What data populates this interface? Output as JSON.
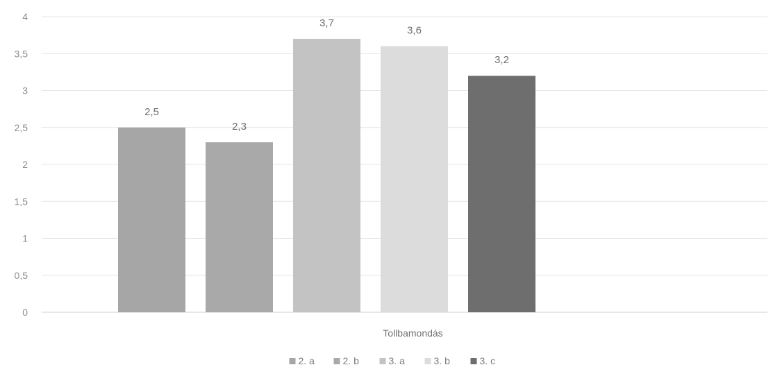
{
  "chart_data": {
    "type": "bar",
    "title": "",
    "xlabel": "",
    "ylabel": "",
    "categories": [
      "Tollbamondás"
    ],
    "ylim": [
      0,
      4
    ],
    "yticks": [
      0,
      0.5,
      1,
      1.5,
      2,
      2.5,
      3,
      3.5,
      4
    ],
    "ytick_labels": [
      "0",
      "0,5",
      "1",
      "1,5",
      "2",
      "2,5",
      "3",
      "3,5",
      "4"
    ],
    "grid": true,
    "legend_position": "bottom",
    "series": [
      {
        "name": "2. a",
        "values": [
          2.5
        ],
        "value_label": "2,5",
        "color": "#a6a6a6"
      },
      {
        "name": "2. b",
        "values": [
          2.3
        ],
        "value_label": "2,3",
        "color": "#a9a9a9"
      },
      {
        "name": "3. a",
        "values": [
          3.7
        ],
        "value_label": "3,7",
        "color": "#c3c3c3"
      },
      {
        "name": "3. b",
        "values": [
          3.6
        ],
        "value_label": "3,6",
        "color": "#dcdcdc"
      },
      {
        "name": "3. c",
        "values": [
          3.2
        ],
        "value_label": "3,2",
        "color": "#6e6e6e"
      }
    ]
  }
}
